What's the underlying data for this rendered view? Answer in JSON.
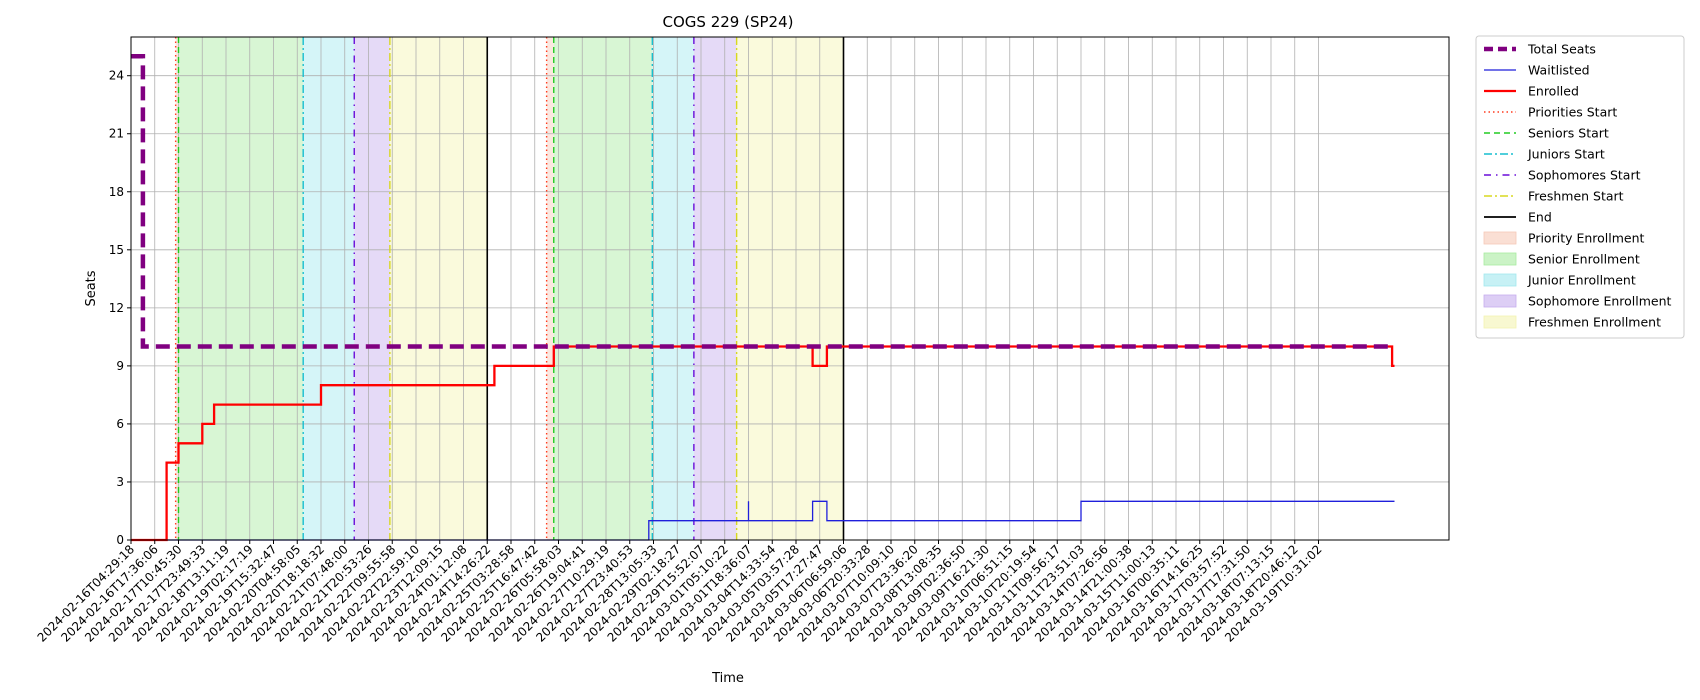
{
  "chart_data": {
    "type": "line",
    "title": "COGS 229 (SP24)",
    "xlabel": "Time",
    "ylabel": "Seats",
    "ylim": [
      0,
      26
    ],
    "yticks": [
      0,
      3,
      6,
      9,
      12,
      15,
      18,
      21,
      24
    ],
    "grid": true,
    "legend_position": "outside-right",
    "x_ticks": [
      "2024-02-16T04:29:18",
      "2024-02-16T17:36:06",
      "2024-02-17T10:45:30",
      "2024-02-17T23:49:33",
      "2024-02-18T13:11:19",
      "2024-02-19T02:17:19",
      "2024-02-19T15:32:47",
      "2024-02-20T04:58:05",
      "2024-02-20T18:18:32",
      "2024-02-21T07:48:00",
      "2024-02-21T20:53:26",
      "2024-02-22T09:55:58",
      "2024-02-22T22:59:10",
      "2024-02-23T12:09:15",
      "2024-02-24T01:12:08",
      "2024-02-24T14:26:22",
      "2024-02-25T03:28:58",
      "2024-02-25T16:47:42",
      "2024-02-26T05:58:03",
      "2024-02-26T19:04:41",
      "2024-02-27T10:29:19",
      "2024-02-27T23:40:53",
      "2024-02-28T13:05:33",
      "2024-02-29T02:18:27",
      "2024-02-29T15:52:07",
      "2024-03-01T05:10:22",
      "2024-03-01T18:36:07",
      "2024-03-04T14:33:54",
      "2024-03-05T03:57:28",
      "2024-03-05T17:27:47",
      "2024-03-06T06:59:06",
      "2024-03-06T20:33:28",
      "2024-03-07T10:09:10",
      "2024-03-07T23:36:20",
      "2024-03-08T13:08:35",
      "2024-03-09T02:36:50",
      "2024-03-09T16:21:30",
      "2024-03-10T06:51:15",
      "2024-03-10T20:19:54",
      "2024-03-11T09:56:17",
      "2024-03-11T23:51:03",
      "2024-03-14T07:26:56",
      "2024-03-14T21:00:38",
      "2024-03-15T11:00:13",
      "2024-03-16T00:35:11",
      "2024-03-16T14:16:25",
      "2024-03-17T03:57:52",
      "2024-03-17T17:31:50",
      "2024-03-18T07:13:15",
      "2024-03-18T20:46:12",
      "2024-03-19T10:31:02"
    ],
    "series": [
      {
        "name": "Total Seats",
        "color": "#800080",
        "style": "dashed-thick",
        "points": [
          [
            0,
            25
          ],
          [
            0.5,
            25
          ],
          [
            0.5,
            10
          ],
          [
            53.2,
            10
          ]
        ]
      },
      {
        "name": "Waitlisted",
        "color": "#1f1fdb",
        "style": "solid-thin",
        "points": [
          [
            0,
            0
          ],
          [
            21.8,
            0
          ],
          [
            21.8,
            1
          ],
          [
            26.0,
            1
          ],
          [
            26.0,
            2
          ],
          [
            26.0,
            1
          ],
          [
            28.7,
            1
          ],
          [
            28.7,
            2
          ],
          [
            29.3,
            2
          ],
          [
            29.3,
            1
          ],
          [
            40.0,
            1
          ],
          [
            40.0,
            2
          ],
          [
            53.2,
            2
          ]
        ]
      },
      {
        "name": "Enrolled",
        "color": "#ff0000",
        "style": "solid",
        "points": [
          [
            0,
            0
          ],
          [
            1.5,
            0
          ],
          [
            1.5,
            4
          ],
          [
            2.0,
            4
          ],
          [
            2.0,
            5
          ],
          [
            3.0,
            5
          ],
          [
            3.0,
            6
          ],
          [
            3.5,
            6
          ],
          [
            3.5,
            7
          ],
          [
            8.0,
            7
          ],
          [
            8.0,
            8
          ],
          [
            15.3,
            8
          ],
          [
            15.3,
            9
          ],
          [
            17.8,
            9
          ],
          [
            17.8,
            10
          ],
          [
            28.7,
            10
          ],
          [
            28.7,
            9
          ],
          [
            29.3,
            9
          ],
          [
            29.3,
            10
          ],
          [
            53.1,
            10
          ],
          [
            53.1,
            9
          ],
          [
            53.2,
            9
          ]
        ]
      }
    ],
    "phase_lines": [
      {
        "name": "Priorities Start",
        "color": "#ff3b1f",
        "style": "dotted"
      },
      {
        "name": "Seniors Start",
        "color": "#22cc22",
        "style": "dashed"
      },
      {
        "name": "Juniors Start",
        "color": "#17becf",
        "style": "dashdot"
      },
      {
        "name": "Sophomores Start",
        "color": "#6a0dd8",
        "style": "dashdot-sparse"
      },
      {
        "name": "Freshmen Start",
        "color": "#d8d820",
        "style": "dashdot"
      },
      {
        "name": "End",
        "color": "#000000",
        "style": "solid"
      }
    ],
    "phase_periods": [
      {
        "name": "Priority Enrollment",
        "color": "#f6c9b8"
      },
      {
        "name": "Senior Enrollment",
        "color": "#a8eba0"
      },
      {
        "name": "Junior Enrollment",
        "color": "#a2e8ef"
      },
      {
        "name": "Sophomore Enrollment",
        "color": "#c6aeee"
      },
      {
        "name": "Freshmen Enrollment",
        "color": "#f3f3b2"
      }
    ],
    "enrollment_rounds": [
      {
        "priorities_start": 1.88,
        "seniors_start": 2.0,
        "juniors_start": 7.25,
        "sophomores_start": 9.4,
        "freshmen_start": 10.9,
        "end": 15.0
      },
      {
        "priorities_start": 17.5,
        "seniors_start": 17.8,
        "juniors_start": 21.95,
        "sophomores_start": 23.7,
        "freshmen_start": 25.5,
        "end": 30.0
      }
    ],
    "legend": [
      "Total Seats",
      "Waitlisted",
      "Enrolled",
      "Priorities Start",
      "Seniors Start",
      "Juniors Start",
      "Sophomores Start",
      "Freshmen Start",
      "End",
      "Priority Enrollment",
      "Senior Enrollment",
      "Junior Enrollment",
      "Sophomore Enrollment",
      "Freshmen Enrollment"
    ]
  }
}
